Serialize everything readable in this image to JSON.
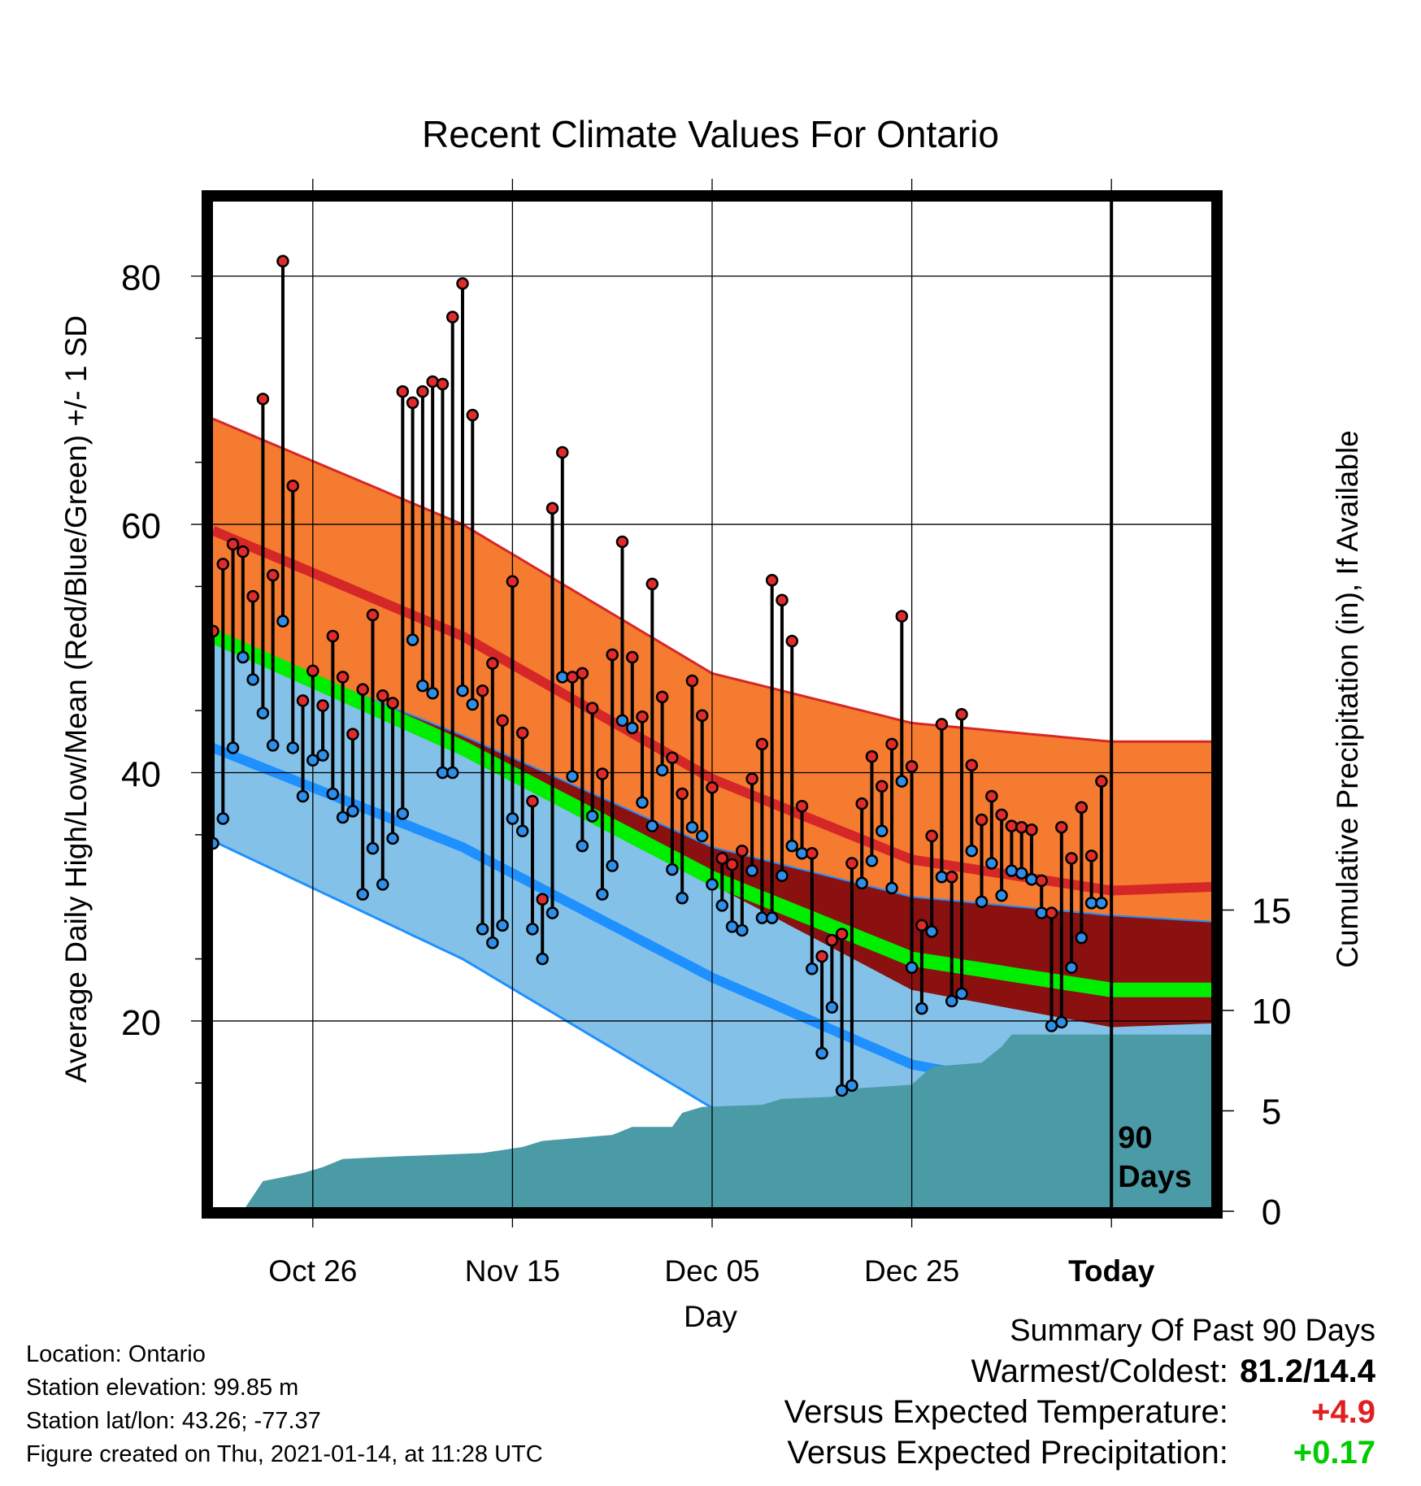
{
  "chart_data": {
    "type": "line",
    "title": "Recent Climate Values For Ontario",
    "xlabel": "Day",
    "ylabel_left": "Average Daily High/Low/Mean (Red/Blue/Green) +/- 1 SD",
    "ylabel_right": "Cumulative Precipitation (in), If Available",
    "x_tick_labels": [
      "Oct 26",
      "Nov 15",
      "Dec 05",
      "Dec 25",
      "Today"
    ],
    "y_left_ticks": [
      20,
      40,
      60,
      80
    ],
    "y_left_range": [
      5,
      86
    ],
    "y_right_ticks": [
      0,
      5,
      10,
      15
    ],
    "y_right_range": [
      0,
      50
    ],
    "x_range_days": [
      0,
      100
    ],
    "today_day": 90,
    "today_label": [
      "90",
      "Days"
    ],
    "grid": true,
    "normal_high": {
      "mean": [
        {
          "day": 0,
          "v": 59.5
        },
        {
          "day": 25,
          "v": 51
        },
        {
          "day": 50,
          "v": 39.5
        },
        {
          "day": 70,
          "v": 33
        },
        {
          "day": 90,
          "v": 30.5
        },
        {
          "day": 100,
          "v": 30.8
        }
      ],
      "upper": [
        {
          "day": 0,
          "v": 68.5
        },
        {
          "day": 25,
          "v": 60
        },
        {
          "day": 50,
          "v": 48
        },
        {
          "day": 70,
          "v": 44
        },
        {
          "day": 90,
          "v": 42.5
        },
        {
          "day": 100,
          "v": 42.5
        }
      ],
      "lower": [
        {
          "day": 0,
          "v": 50.5
        },
        {
          "day": 25,
          "v": 42
        },
        {
          "day": 50,
          "v": 31
        },
        {
          "day": 70,
          "v": 22.5
        },
        {
          "day": 90,
          "v": 19.5
        },
        {
          "day": 100,
          "v": 19.8
        }
      ]
    },
    "normal_mean": [
      {
        "day": 0,
        "v": 51
      },
      {
        "day": 25,
        "v": 42
      },
      {
        "day": 50,
        "v": 31.5
      },
      {
        "day": 70,
        "v": 25
      },
      {
        "day": 90,
        "v": 22.5
      },
      {
        "day": 100,
        "v": 22.5
      }
    ],
    "normal_low": {
      "mean": [
        {
          "day": 0,
          "v": 42
        },
        {
          "day": 25,
          "v": 34
        },
        {
          "day": 50,
          "v": 23.5
        },
        {
          "day": 70,
          "v": 16.5
        },
        {
          "day": 90,
          "v": 13.5
        },
        {
          "day": 100,
          "v": 13.8
        }
      ],
      "upper": [
        {
          "day": 0,
          "v": 51
        },
        {
          "day": 25,
          "v": 43
        },
        {
          "day": 50,
          "v": 34
        },
        {
          "day": 70,
          "v": 30
        },
        {
          "day": 90,
          "v": 28.5
        },
        {
          "day": 100,
          "v": 28
        }
      ],
      "lower": [
        {
          "day": 0,
          "v": 34.5
        },
        {
          "day": 25,
          "v": 25
        },
        {
          "day": 50,
          "v": 13
        },
        {
          "day": 70,
          "v": 4
        },
        {
          "day": 90,
          "v": -1
        },
        {
          "day": 100,
          "v": -1
        }
      ]
    },
    "daily": [
      {
        "day": 0,
        "high": 51.4,
        "low": 34.3
      },
      {
        "day": 1,
        "high": 56.8,
        "low": 36.3
      },
      {
        "day": 2,
        "high": 58.4,
        "low": 42
      },
      {
        "day": 3,
        "high": 57.8,
        "low": 49.3
      },
      {
        "day": 4,
        "high": 54.2,
        "low": 47.5
      },
      {
        "day": 5,
        "high": 70.1,
        "low": 44.8
      },
      {
        "day": 6,
        "high": 55.9,
        "low": 42.2
      },
      {
        "day": 7,
        "high": 81.2,
        "low": 52.2
      },
      {
        "day": 8,
        "high": 63.1,
        "low": 42
      },
      {
        "day": 9,
        "high": 45.8,
        "low": 38.1
      },
      {
        "day": 10,
        "high": 48.2,
        "low": 41
      },
      {
        "day": 11,
        "high": 45.4,
        "low": 41.4
      },
      {
        "day": 12,
        "high": 51,
        "low": 38.3
      },
      {
        "day": 13,
        "high": 47.7,
        "low": 36.4
      },
      {
        "day": 14,
        "high": 43.1,
        "low": 36.9
      },
      {
        "day": 15,
        "high": 46.7,
        "low": 30.2
      },
      {
        "day": 16,
        "high": 52.7,
        "low": 33.9
      },
      {
        "day": 17,
        "high": 46.2,
        "low": 31
      },
      {
        "day": 18,
        "high": 45.6,
        "low": 34.7
      },
      {
        "day": 19,
        "high": 70.7,
        "low": 36.7
      },
      {
        "day": 20,
        "high": 69.8,
        "low": 50.7
      },
      {
        "day": 21,
        "high": 70.7,
        "low": 47
      },
      {
        "day": 22,
        "high": 71.5,
        "low": 46.4
      },
      {
        "day": 23,
        "high": 71.3,
        "low": 40
      },
      {
        "day": 24,
        "high": 76.7,
        "low": 40
      },
      {
        "day": 25,
        "high": 79.4,
        "low": 46.6
      },
      {
        "day": 26,
        "high": 68.8,
        "low": 45.5
      },
      {
        "day": 27,
        "high": 46.6,
        "low": 27.4
      },
      {
        "day": 28,
        "high": 48.8,
        "low": 26.3
      },
      {
        "day": 29,
        "high": 44.2,
        "low": 27.7
      },
      {
        "day": 30,
        "high": 55.4,
        "low": 36.3
      },
      {
        "day": 31,
        "high": 43.2,
        "low": 35.3
      },
      {
        "day": 32,
        "high": 37.7,
        "low": 27.4
      },
      {
        "day": 33,
        "high": 29.8,
        "low": 25
      },
      {
        "day": 34,
        "high": 61.3,
        "low": 28.7
      },
      {
        "day": 35,
        "high": 65.8,
        "low": 47.7
      },
      {
        "day": 36,
        "high": 47.7,
        "low": 39.7
      },
      {
        "day": 37,
        "high": 48,
        "low": 34.1
      },
      {
        "day": 38,
        "high": 45.2,
        "low": 36.5
      },
      {
        "day": 39,
        "high": 39.9,
        "low": 30.2
      },
      {
        "day": 40,
        "high": 49.5,
        "low": 32.5
      },
      {
        "day": 41,
        "high": 58.6,
        "low": 44.2
      },
      {
        "day": 42,
        "high": 49.3,
        "low": 43.6
      },
      {
        "day": 43,
        "high": 44.5,
        "low": 37.6
      },
      {
        "day": 44,
        "high": 55.2,
        "low": 35.7
      },
      {
        "day": 45,
        "high": 46.1,
        "low": 40.2
      },
      {
        "day": 46,
        "high": 41.2,
        "low": 32.2
      },
      {
        "day": 47,
        "high": 38.3,
        "low": 29.9
      },
      {
        "day": 48,
        "high": 47.4,
        "low": 35.6
      },
      {
        "day": 49,
        "high": 44.6,
        "low": 34.9
      },
      {
        "day": 50,
        "high": 38.8,
        "low": 31
      },
      {
        "day": 51,
        "high": 33.1,
        "low": 29.3
      },
      {
        "day": 52,
        "high": 32.6,
        "low": 27.6
      },
      {
        "day": 53,
        "high": 33.7,
        "low": 27.3
      },
      {
        "day": 54,
        "high": 39.5,
        "low": 32.1
      },
      {
        "day": 55,
        "high": 42.3,
        "low": 28.3
      },
      {
        "day": 56,
        "high": 55.5,
        "low": 28.3
      },
      {
        "day": 57,
        "high": 53.9,
        "low": 31.7
      },
      {
        "day": 58,
        "high": 50.6,
        "low": 34.1
      },
      {
        "day": 59,
        "high": 37.3,
        "low": 33.5
      },
      {
        "day": 60,
        "high": 33.5,
        "low": 24.2
      },
      {
        "day": 61,
        "high": 25.2,
        "low": 17.4
      },
      {
        "day": 62,
        "high": 26.5,
        "low": 21.1
      },
      {
        "day": 63,
        "high": 27,
        "low": 14.4
      },
      {
        "day": 64,
        "high": 32.7,
        "low": 14.8
      },
      {
        "day": 65,
        "high": 37.5,
        "low": 31.1
      },
      {
        "day": 66,
        "high": 41.3,
        "low": 32.9
      },
      {
        "day": 67,
        "high": 38.9,
        "low": 35.3
      },
      {
        "day": 68,
        "high": 42.3,
        "low": 30.7
      },
      {
        "day": 69,
        "high": 52.6,
        "low": 39.3
      },
      {
        "day": 70,
        "high": 40.5,
        "low": 24.3
      },
      {
        "day": 71,
        "high": 27.7,
        "low": 21
      },
      {
        "day": 72,
        "high": 34.9,
        "low": 27.2
      },
      {
        "day": 73,
        "high": 43.9,
        "low": 31.6
      },
      {
        "day": 74,
        "high": 31.6,
        "low": 21.6
      },
      {
        "day": 75,
        "high": 44.7,
        "low": 22.2
      },
      {
        "day": 76,
        "high": 40.6,
        "low": 33.7
      },
      {
        "day": 77,
        "high": 36.2,
        "low": 29.6
      },
      {
        "day": 78,
        "high": 38.1,
        "low": 32.7
      },
      {
        "day": 79,
        "high": 36.6,
        "low": 30.1
      },
      {
        "day": 80,
        "high": 35.7,
        "low": 32.1
      },
      {
        "day": 81,
        "high": 35.6,
        "low": 31.9
      },
      {
        "day": 82,
        "high": 35.4,
        "low": 31.4
      },
      {
        "day": 83,
        "high": 31.3,
        "low": 28.7
      },
      {
        "day": 84,
        "high": 28.7,
        "low": 19.6
      },
      {
        "day": 85,
        "high": 35.6,
        "low": 19.9
      },
      {
        "day": 86,
        "high": 33.1,
        "low": 24.3
      },
      {
        "day": 87,
        "high": 37.2,
        "low": 26.7
      },
      {
        "day": 88,
        "high": 33.3,
        "low": 29.5
      },
      {
        "day": 89,
        "high": 39.3,
        "low": 29.5
      }
    ],
    "precip_cumulative": [
      {
        "day": 3,
        "v": 0
      },
      {
        "day": 5,
        "v": 1.5
      },
      {
        "day": 9,
        "v": 1.9
      },
      {
        "day": 11,
        "v": 2.2
      },
      {
        "day": 13,
        "v": 2.6
      },
      {
        "day": 17,
        "v": 2.7
      },
      {
        "day": 27,
        "v": 2.9
      },
      {
        "day": 31,
        "v": 3.2
      },
      {
        "day": 33,
        "v": 3.5
      },
      {
        "day": 40,
        "v": 3.8
      },
      {
        "day": 42,
        "v": 4.2
      },
      {
        "day": 46,
        "v": 4.2
      },
      {
        "day": 47,
        "v": 4.9
      },
      {
        "day": 49,
        "v": 5.2
      },
      {
        "day": 55,
        "v": 5.3
      },
      {
        "day": 57,
        "v": 5.6
      },
      {
        "day": 62,
        "v": 5.7
      },
      {
        "day": 64,
        "v": 6.1
      },
      {
        "day": 70,
        "v": 6.3
      },
      {
        "day": 72,
        "v": 7.2
      },
      {
        "day": 77,
        "v": 7.4
      },
      {
        "day": 79,
        "v": 8.2
      },
      {
        "day": 80,
        "v": 8.8
      },
      {
        "day": 100,
        "v": 8.8
      }
    ]
  },
  "info": {
    "location": "Location: Ontario",
    "elevation": "Station elevation: 99.85 m",
    "latlon": "Station lat/lon: 43.26; -77.37",
    "created": "Figure created on Thu, 2021-01-14, at 11:28 UTC"
  },
  "summary": {
    "heading": "Summary Of Past 90 Days",
    "warm_cold_label": "Warmest/Coldest:",
    "warm_cold_value": "81.2/14.4",
    "temp_label": "Versus Expected Temperature:",
    "temp_value": "+4.9",
    "precip_label": "Versus Expected Precipitation:",
    "precip_value": "+0.17"
  },
  "colors": {
    "high_band": "#f47b2f",
    "high_band_edge": "#d62728",
    "high_mean": "#d62728",
    "low_band": "#84c1e8",
    "low_band_edge": "#1e90ff",
    "low_mean": "#1e90ff",
    "overlap": "#8b1010",
    "mean": "#00ee00",
    "precip": "#4a9ba6",
    "high_dot": "#e12b2b",
    "low_dot": "#2e8ee8",
    "warm_value": "#e02020",
    "precip_value": "#00cc00"
  }
}
